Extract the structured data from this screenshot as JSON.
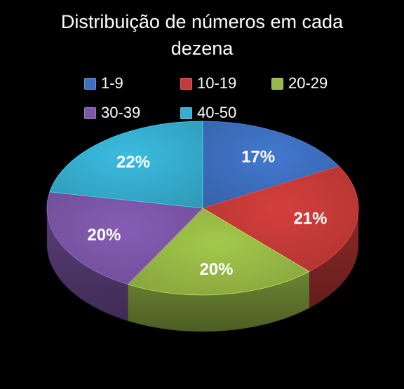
{
  "chart_data": {
    "type": "pie",
    "title_lines": [
      "Distribuição de números em cada",
      "dezena"
    ],
    "categories": [
      "1-9",
      "10-19",
      "20-29",
      "30-39",
      "40-50"
    ],
    "values": [
      17,
      21,
      20,
      20,
      22
    ],
    "labels": [
      "17%",
      "21%",
      "20%",
      "20%",
      "22%"
    ],
    "colors": [
      "#3d6fc0",
      "#c53a38",
      "#98b945",
      "#7c56a8",
      "#37aed0"
    ],
    "style": "3d",
    "legend_position": "top"
  }
}
